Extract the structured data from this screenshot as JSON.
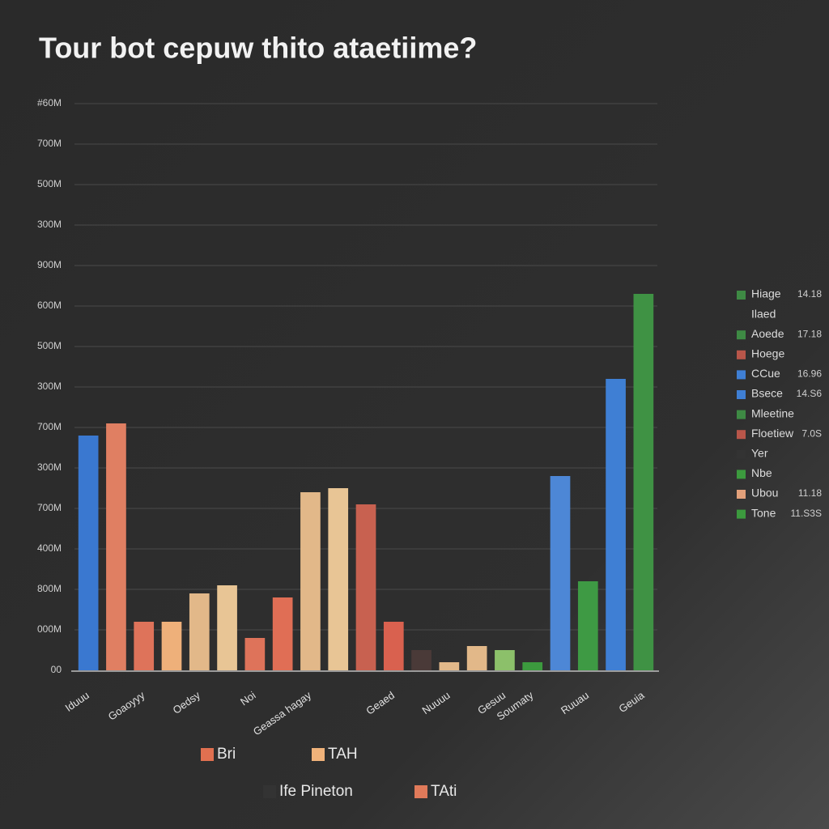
{
  "chart_data": {
    "type": "bar",
    "title": "Tour bot cepuw thito ataetiime?",
    "categories": [
      "Iduuu",
      null,
      "Goaoyyy",
      null,
      "Oedsy",
      null,
      "Noi",
      null,
      "Geassa hagay",
      null,
      null,
      "Geaed",
      null,
      "Nuuuu",
      null,
      "Gesuu",
      "Soumaty",
      null,
      "Ruuau",
      null,
      "Geuia"
    ],
    "values": [
      5.8,
      6.1,
      1.2,
      1.2,
      1.9,
      2.1,
      0.8,
      1.8,
      4.4,
      4.5,
      4.1,
      1.2,
      0.5,
      0.2,
      0.6,
      0.5,
      0.2,
      4.8,
      2.2,
      7.2,
      9.3
    ],
    "colors": [
      "#3a78d0",
      "#e07f62",
      "#de735a",
      "#eeb07a",
      "#e2b889",
      "#e8c595",
      "#de735a",
      "#e06e55",
      "#e2b889",
      "#e8c595",
      "#c86150",
      "#d9614f",
      "#4a3a38",
      "#e2b889",
      "#e2b889",
      "#8cc06a",
      "#3c9a3e",
      "#4d87d6",
      "#3e9a44",
      "#3f7fd4",
      "#3f9244"
    ],
    "ylim": [
      0,
      14
    ],
    "yticks": [
      {
        "value": 0,
        "label": "00"
      },
      {
        "value": 1,
        "label": "000M"
      },
      {
        "value": 2,
        "label": "800M"
      },
      {
        "value": 3,
        "label": "400M"
      },
      {
        "value": 4,
        "label": "700M"
      },
      {
        "value": 5,
        "label": "300M"
      },
      {
        "value": 6,
        "label": "700M"
      },
      {
        "value": 7,
        "label": "300M"
      },
      {
        "value": 8,
        "label": "500M"
      },
      {
        "value": 9,
        "label": "600M"
      },
      {
        "value": 10,
        "label": "900M"
      },
      {
        "value": 11,
        "label": "300M"
      },
      {
        "value": 12,
        "label": "500M"
      },
      {
        "value": 13,
        "label": "700M"
      },
      {
        "value": 14,
        "label": "#60M"
      }
    ],
    "grid": true,
    "legend": [
      {
        "name": "Hiage",
        "color": "#3e8a44",
        "label": "14.18"
      },
      {
        "name": "Ilaed",
        "color": null,
        "label": null
      },
      {
        "name": "Aoede",
        "color": "#3e8a44",
        "label": "17.18"
      },
      {
        "name": "Hoege",
        "color": "#b8564a",
        "label": null
      },
      {
        "name": "CCue",
        "color": "#3f7fd4",
        "label": "16.96"
      },
      {
        "name": "Bsece",
        "color": "#3f7fd4",
        "label": "14.S6"
      },
      {
        "name": "Mleetine",
        "color": "#3e8a44",
        "label": null
      },
      {
        "name": "Floetiew",
        "color": "#b8564a",
        "label": "7.0S"
      },
      {
        "name": "Yer",
        "color": "#333333",
        "label": null
      },
      {
        "name": "Nbe",
        "color": "#3c9a3e",
        "label": null
      },
      {
        "name": "Ubou",
        "color": "#e2a07a",
        "label": "11.18"
      },
      {
        "name": "Tone",
        "color": "#3c9a3e",
        "label": "11.S3S"
      }
    ],
    "legend_bottom": [
      {
        "name": "Bri",
        "color": "#e07050"
      },
      {
        "name": "TAH",
        "color": "#f0b27a"
      },
      {
        "name": "Ife Pineton",
        "color": "#333333"
      },
      {
        "name": "TAti",
        "color": "#e07a5a"
      }
    ]
  }
}
